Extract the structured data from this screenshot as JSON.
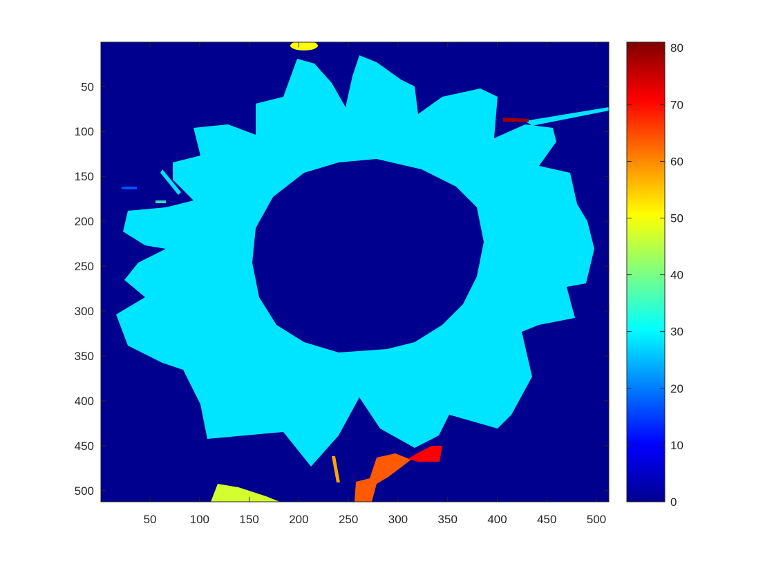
{
  "chart_data": {
    "type": "heatmap",
    "title": "",
    "xlabel": "",
    "ylabel": "",
    "image_size": [
      512,
      512
    ],
    "xlim": [
      0.5,
      512.5
    ],
    "ylim": [
      0.5,
      512.5
    ],
    "y_direction": "reverse",
    "x_ticks": [
      50,
      100,
      150,
      200,
      250,
      300,
      350,
      400,
      450,
      500
    ],
    "y_ticks": [
      50,
      100,
      150,
      200,
      250,
      300,
      350,
      400,
      450,
      500
    ],
    "colormap": "jet",
    "color_limits": [
      0,
      81
    ],
    "colorbar_ticks": [
      0,
      10,
      20,
      30,
      40,
      50,
      60,
      70,
      80
    ],
    "background_value": 0,
    "regions": [
      {
        "name": "flower-petal-ring",
        "value": 28,
        "color": "#00E5FF"
      },
      {
        "name": "flower-center",
        "value": 0,
        "color": "#00008F"
      },
      {
        "name": "top-blob",
        "value": 49,
        "color": "#FFFF00"
      },
      {
        "name": "bottom-left-blob",
        "value": 47,
        "color": "#D2FF2D"
      },
      {
        "name": "stem-blob",
        "value": 63,
        "color": "#FF5A00"
      },
      {
        "name": "leaf-blob",
        "value": 73,
        "color": "#FF0000"
      },
      {
        "name": "top-right-streak",
        "value": 80,
        "color": "#A00000"
      }
    ],
    "grid": false,
    "legend": "none",
    "colorbar_location": "right"
  }
}
